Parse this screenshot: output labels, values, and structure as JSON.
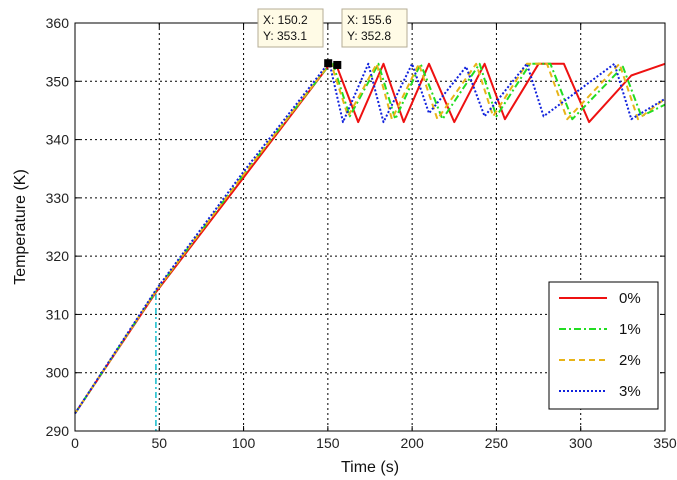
{
  "chart_data": {
    "type": "line",
    "title": "",
    "xlabel": "Time (s)",
    "ylabel": "Temperature (K)",
    "xlim": [
      0,
      350
    ],
    "ylim": [
      290,
      360
    ],
    "xticks": [
      0,
      50,
      100,
      150,
      200,
      250,
      300,
      350
    ],
    "yticks": [
      290,
      300,
      310,
      320,
      330,
      340,
      350,
      360
    ],
    "grid": true,
    "legend_position": "bottom-right",
    "series": [
      {
        "name": "0%",
        "color": "#ee1111",
        "style": "solid",
        "x": [
          0,
          48,
          100,
          150,
          155,
          168,
          183,
          195,
          210,
          225,
          243,
          255,
          275,
          290,
          305,
          330,
          350
        ],
        "y": [
          293,
          313.8,
          333.5,
          352.5,
          352.8,
          343,
          353,
          343,
          353,
          343,
          353,
          343.5,
          353,
          353,
          343,
          351,
          353
        ]
      },
      {
        "name": "1%",
        "color": "#22dd22",
        "style": "dashdot",
        "x": [
          0,
          48,
          100,
          150,
          153,
          163,
          180,
          190,
          205,
          218,
          240,
          250,
          270,
          282,
          295,
          325,
          336,
          350
        ],
        "y": [
          293,
          314,
          334,
          352.5,
          353,
          344,
          353,
          343.5,
          353,
          343.5,
          353,
          344,
          353,
          353,
          343.5,
          352.5,
          344,
          346
        ]
      },
      {
        "name": "2%",
        "color": "#e8b418",
        "style": "dashed",
        "x": [
          0,
          48,
          100,
          150,
          152,
          162,
          179,
          188,
          204,
          215,
          238,
          248,
          268,
          280,
          292,
          323,
          334,
          350
        ],
        "y": [
          293,
          314,
          334,
          352.6,
          353,
          344,
          353,
          343.5,
          353,
          343.5,
          353,
          344,
          353,
          353,
          343.5,
          353,
          343.5,
          347
        ]
      },
      {
        "name": "3%",
        "color": "#1122dd",
        "style": "dotted",
        "x": [
          0,
          48,
          100,
          150,
          151,
          159,
          174,
          183,
          200,
          210,
          232,
          243,
          268,
          278,
          320,
          330,
          350
        ],
        "y": [
          293,
          314.2,
          334.5,
          353,
          353.1,
          343,
          353,
          343,
          353,
          344.5,
          352.5,
          344,
          353,
          344,
          353,
          343.5,
          347
        ]
      }
    ],
    "marker_line": {
      "x": 48,
      "y": 313.5,
      "color": "#11bbcc"
    },
    "datatips": [
      {
        "x_label": "X: 150.2",
        "y_label": "Y: 353.1",
        "x": 150.2,
        "y": 353.1
      },
      {
        "x_label": "X: 155.6",
        "y_label": "Y: 352.8",
        "x": 155.6,
        "y": 352.8
      }
    ]
  }
}
